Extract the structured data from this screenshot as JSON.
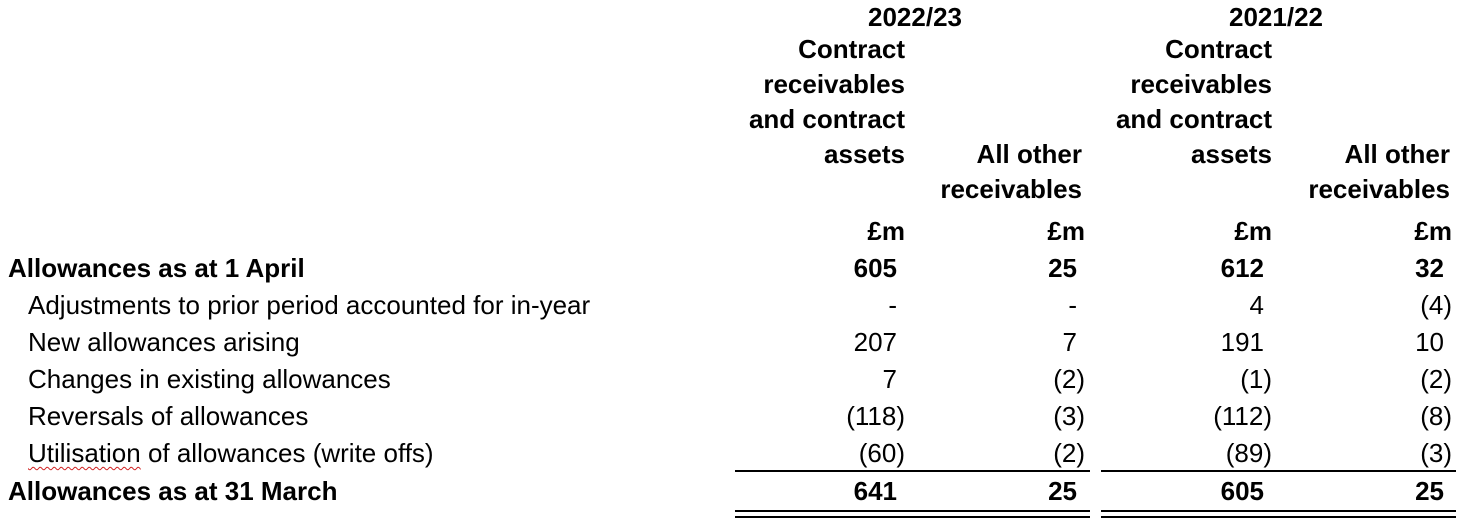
{
  "years": [
    "2022/23",
    "2021/22"
  ],
  "columns": [
    {
      "header": "Contract receivables and contract assets",
      "unit": "£m"
    },
    {
      "header": "All other receivables",
      "unit": "£m"
    },
    {
      "header": "Contract receivables and contract assets",
      "unit": "£m"
    },
    {
      "header": "All other receivables",
      "unit": "£m"
    }
  ],
  "rows": [
    {
      "label": "Allowances as at 1 April",
      "values": [
        "605",
        "25",
        "612",
        "32"
      ]
    },
    {
      "label": "Adjustments to prior period accounted for in-year",
      "values": [
        "-",
        "-",
        "4",
        "(4)"
      ]
    },
    {
      "label": "New allowances arising",
      "values": [
        "207",
        "7",
        "191",
        "10"
      ]
    },
    {
      "label": "Changes in existing allowances",
      "values": [
        "7",
        "(2)",
        "(1)",
        "(2)"
      ]
    },
    {
      "label": "Reversals of allowances",
      "values": [
        "(118)",
        "(3)",
        "(112)",
        "(8)"
      ]
    },
    {
      "label_first_word": "Utilisation",
      "label_rest": " of allowances (write offs)",
      "values": [
        "(60)",
        "(2)",
        "(89)",
        "(3)"
      ]
    },
    {
      "label": "Allowances as at 31 March",
      "values": [
        "641",
        "25",
        "605",
        "25"
      ]
    }
  ]
}
